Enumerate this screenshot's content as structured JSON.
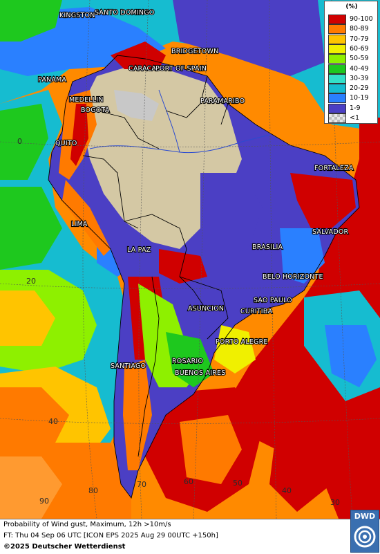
{
  "legend": {
    "title": "(%)",
    "items": [
      {
        "label": "90-100",
        "color": "#d00000"
      },
      {
        "label": "80-89",
        "color": "#ff7a00"
      },
      {
        "label": "70-79",
        "color": "#ffc400"
      },
      {
        "label": "60-69",
        "color": "#f0f000"
      },
      {
        "label": "50-59",
        "color": "#8ef000"
      },
      {
        "label": "40-49",
        "color": "#1ec81e"
      },
      {
        "label": "30-39",
        "color": "#33e0c8"
      },
      {
        "label": "20-29",
        "color": "#16bcd0"
      },
      {
        "label": "10-19",
        "color": "#2a80ff"
      },
      {
        "label": "1-9",
        "color": "#4b3fc4"
      },
      {
        "label": "<1",
        "color": "#c8c8c8"
      }
    ]
  },
  "cities": {
    "kingston": "KINGSTON",
    "santo_domingo": "SANTO DOMINGO",
    "bridgetown": "BRIDGETOWN",
    "caracas": "CARACAS",
    "port_of_spain": "PORT OF SPAIN",
    "panama": "PANAMA",
    "paramaribo": "PARAMARIBO",
    "medellin": "MEDELLIN",
    "bogota": "BOGOTA",
    "quito": "QUITO",
    "fortaleza": "FORTALEZA",
    "lima": "LIMA",
    "salvador": "SALVADOR",
    "brasilia": "BRASILIA",
    "la_paz": "LA PAZ",
    "belo_horizonte": "BELO HORIZONTE",
    "sao_paulo": "SAO PAULO",
    "asuncion": "ASUNCION",
    "curitiba": "CURITIBA",
    "porto_alegre": "PORTO ALEGRE",
    "rosario": "ROSARIO",
    "buenos_aires": "BUENOS AIRES",
    "santiago": "SANTIAGO"
  },
  "graticule": {
    "lat_0": "0",
    "lat_20": "20",
    "lat_40": "40",
    "lon_90": "90",
    "lon_80": "80",
    "lon_70": "70",
    "lon_60": "60",
    "lon_50": "50",
    "lon_40": "40",
    "lon_30": "30"
  },
  "footer": {
    "line1": "Probability of Wind gust, Maximum, 12h >10m/s",
    "line2": "FT: Thu 04 Sep 06 UTC [ICON EPS 2025 Aug 29 00UTC +150h]",
    "line3": "©2025 Deutscher Wetterdienst"
  },
  "logo": {
    "text": "DWD"
  }
}
